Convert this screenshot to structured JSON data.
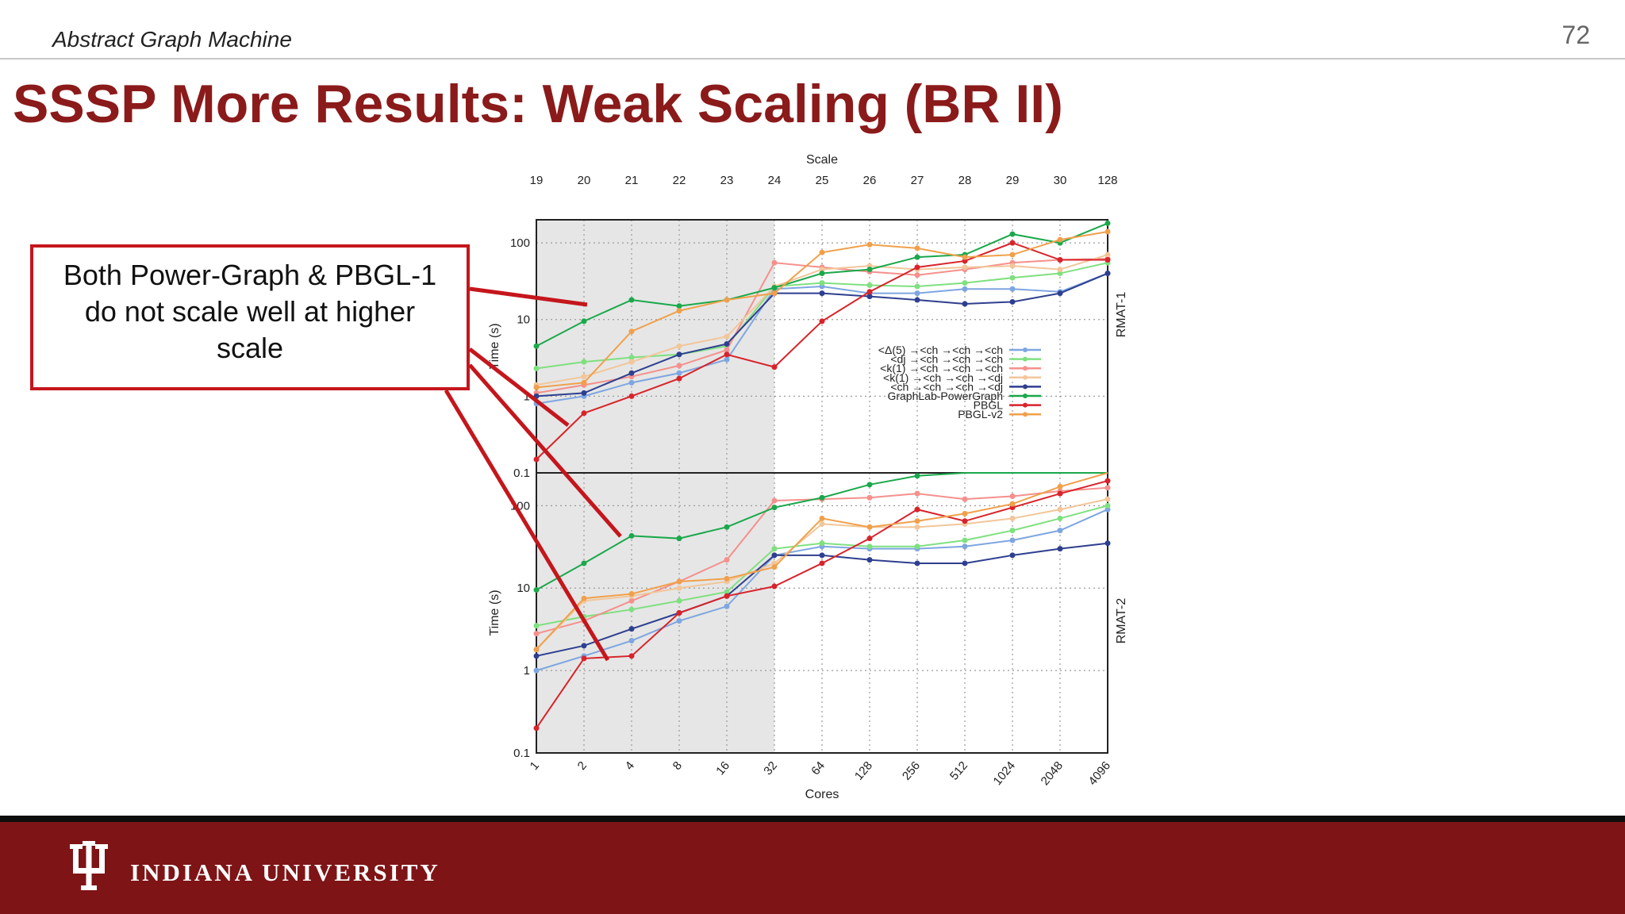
{
  "header": {
    "title": "Abstract Graph Machine",
    "page_number": "72"
  },
  "slide": {
    "title": "SSSP More Results: Weak Scaling (BR II)"
  },
  "callout": {
    "text": "Both Power-Graph & PBGL-1 do not scale well at higher scale"
  },
  "footer": {
    "institution": "INDIANA UNIVERSITY"
  },
  "colors": {
    "brand": "#7e1416",
    "title": "#8b1a1a",
    "callout_border": "#c4161c"
  },
  "chart_data": [
    {
      "type": "line",
      "panel_label": "RMAT-1",
      "x2label": "Scale",
      "scale_ticks": [
        "19",
        "20",
        "21",
        "22",
        "23",
        "24",
        "25",
        "26",
        "27",
        "28",
        "29",
        "30",
        "128"
      ],
      "xlabel": "Cores",
      "categories": [
        "1",
        "2",
        "4",
        "8",
        "16",
        "32",
        "64",
        "128",
        "256",
        "512",
        "1024",
        "2048",
        "4096"
      ],
      "ylabel": "Time (s)",
      "yscale": "log",
      "ylim": [
        0.1,
        200
      ],
      "yticks": [
        "0.1",
        "1",
        "10",
        "100"
      ],
      "shaded_range": [
        "1",
        "32"
      ],
      "grid": true,
      "legend_position": "right",
      "series": [
        {
          "name": "<Δ(5) →<ch →<ch →<ch",
          "color": "#7ea6e0",
          "values": [
            0.8,
            1.0,
            1.5,
            2.0,
            3.0,
            25,
            27,
            22,
            22,
            25,
            25,
            23,
            40
          ]
        },
        {
          "name": "<dj →<ch →<ch →<ch",
          "color": "#7fe07f",
          "values": [
            2.3,
            2.8,
            3.2,
            3.5,
            4.5,
            27,
            30,
            28,
            27,
            30,
            35,
            40,
            55
          ]
        },
        {
          "name": "<k(1) →<ch →<ch →<ch",
          "color": "#f5908c",
          "values": [
            1.1,
            1.4,
            1.8,
            2.5,
            4.0,
            55,
            48,
            42,
            38,
            45,
            55,
            60,
            62
          ]
        },
        {
          "name": "<k(1) →<ch →<ch →<dj",
          "color": "#f2c69a",
          "values": [
            1.4,
            1.8,
            2.8,
            4.5,
            6.0,
            27,
            45,
            50,
            45,
            48,
            50,
            45,
            70
          ]
        },
        {
          "name": "<ch →<ch →<ch →<dj",
          "color": "#2e3f8f",
          "values": [
            1.0,
            1.1,
            2.0,
            3.5,
            4.8,
            22,
            22,
            20,
            18,
            16,
            17,
            22,
            40
          ]
        },
        {
          "name": "GraphLab-PowerGraph",
          "color": "#1aa84b",
          "values": [
            4.5,
            9.5,
            18,
            15,
            18,
            26,
            40,
            45,
            65,
            70,
            130,
            100,
            180
          ]
        },
        {
          "name": "PBGL",
          "color": "#d8232a",
          "values": [
            0.15,
            0.6,
            1.0,
            1.7,
            3.5,
            2.4,
            9.5,
            23,
            48,
            58,
            100,
            60,
            60
          ]
        },
        {
          "name": "PBGL-v2",
          "color": "#f0a04b",
          "values": [
            1.3,
            1.5,
            7.0,
            13,
            18,
            22,
            75,
            95,
            85,
            65,
            70,
            110,
            140
          ]
        }
      ]
    },
    {
      "type": "line",
      "panel_label": "RMAT-2",
      "xlabel": "Cores",
      "categories": [
        "1",
        "2",
        "4",
        "8",
        "16",
        "32",
        "64",
        "128",
        "256",
        "512",
        "1024",
        "2048",
        "4096"
      ],
      "ylabel": "Time (s)",
      "yscale": "log",
      "ylim": [
        0.1,
        250
      ],
      "yticks": [
        "0.1",
        "1",
        "10",
        "100"
      ],
      "shaded_range": [
        "1",
        "32"
      ],
      "grid": true,
      "series": [
        {
          "name": "<Δ(5) →<ch →<ch →<ch",
          "color": "#7ea6e0",
          "values": [
            1.0,
            1.5,
            2.3,
            4.0,
            6.0,
            25,
            32,
            30,
            30,
            32,
            38,
            50,
            90
          ]
        },
        {
          "name": "<dj →<ch →<ch →<ch",
          "color": "#7fe07f",
          "values": [
            3.5,
            4.5,
            5.5,
            7.0,
            9.0,
            30,
            35,
            32,
            32,
            38,
            50,
            70,
            100
          ]
        },
        {
          "name": "<k(1) →<ch →<ch →<ch",
          "color": "#f5908c",
          "values": [
            2.8,
            4.0,
            7.0,
            12,
            22,
            115,
            120,
            125,
            140,
            120,
            130,
            150,
            165
          ]
        },
        {
          "name": "<k(1) →<ch →<ch →<dj",
          "color": "#f2c69a",
          "values": [
            1.8,
            7.0,
            8.0,
            10,
            12,
            20,
            60,
            55,
            55,
            60,
            70,
            90,
            120
          ]
        },
        {
          "name": "<ch →<ch →<ch →<dj",
          "color": "#2e3f8f",
          "values": [
            1.5,
            2.0,
            3.2,
            5.0,
            8.0,
            25,
            25,
            22,
            20,
            20,
            25,
            30,
            35
          ]
        },
        {
          "name": "GraphLab-PowerGraph",
          "color": "#1aa84b",
          "values": [
            9.5,
            20,
            43,
            40,
            55,
            95,
            125,
            180,
            230,
            260,
            280,
            300,
            320
          ]
        },
        {
          "name": "PBGL",
          "color": "#d8232a",
          "values": [
            0.2,
            1.4,
            1.5,
            5.0,
            8.0,
            10.5,
            20,
            40,
            90,
            65,
            95,
            140,
            200
          ]
        },
        {
          "name": "PBGL-v2",
          "color": "#f0a04b",
          "values": [
            1.8,
            7.5,
            8.5,
            12,
            13,
            18,
            70,
            55,
            65,
            80,
            105,
            170,
            260
          ]
        }
      ]
    }
  ]
}
